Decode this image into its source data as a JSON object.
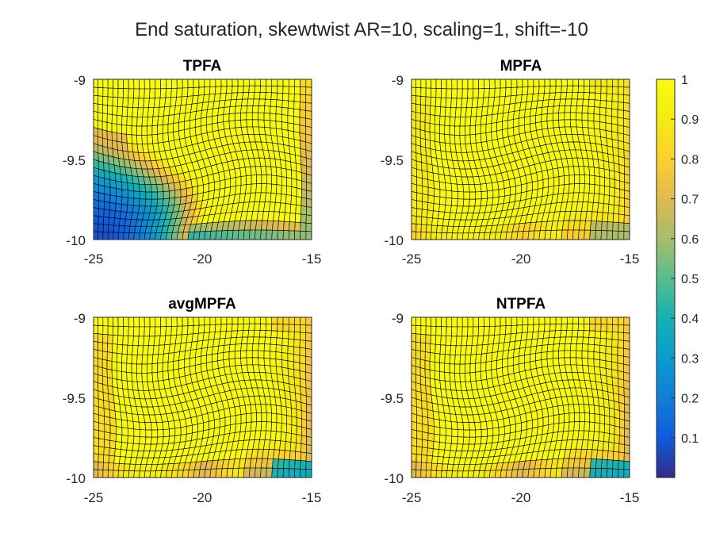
{
  "chart_data": {
    "type": "heatmap",
    "title": "End saturation, skewtwist AR=10, scaling=1, shift=-10",
    "colormap": "parula",
    "grid_on_cells": true,
    "colorbar": {
      "placement": "right",
      "range": [
        0,
        1
      ],
      "ticks": [
        "0.1",
        "0.2",
        "0.3",
        "0.4",
        "0.5",
        "0.6",
        "0.7",
        "0.8",
        "0.9",
        "1"
      ]
    },
    "panels": [
      {
        "title": "TPFA",
        "xlim": [
          -25,
          -15
        ],
        "ylim": [
          -10,
          -9
        ],
        "xticks": [
          "-25",
          "-20",
          "-15"
        ],
        "yticks": [
          "-9",
          "-9.5",
          "-10"
        ],
        "field": {
          "kind": "tpfa",
          "min_value": 0.05,
          "max_value": 1.0
        }
      },
      {
        "title": "MPFA",
        "xlim": [
          -25,
          -15
        ],
        "ylim": [
          -10,
          -9
        ],
        "xticks": [
          "-25",
          "-20",
          "-15"
        ],
        "yticks": [
          "-9",
          "-9.5",
          "-10"
        ],
        "field": {
          "kind": "mpfa",
          "min_value": 0.5,
          "max_value": 1.0
        }
      },
      {
        "title": "avgMPFA",
        "xlim": [
          -25,
          -15
        ],
        "ylim": [
          -10,
          -9
        ],
        "xticks": [
          "-25",
          "-20",
          "-15"
        ],
        "yticks": [
          "-9",
          "-9.5",
          "-10"
        ],
        "field": {
          "kind": "mpfa",
          "min_value": 0.2,
          "max_value": 1.0
        }
      },
      {
        "title": "NTPFA",
        "xlim": [
          -25,
          -15
        ],
        "ylim": [
          -10,
          -9
        ],
        "xticks": [
          "-25",
          "-20",
          "-15"
        ],
        "yticks": [
          "-9",
          "-9.5",
          "-10"
        ],
        "field": {
          "kind": "mpfa",
          "min_value": 0.2,
          "max_value": 1.0
        }
      }
    ]
  }
}
